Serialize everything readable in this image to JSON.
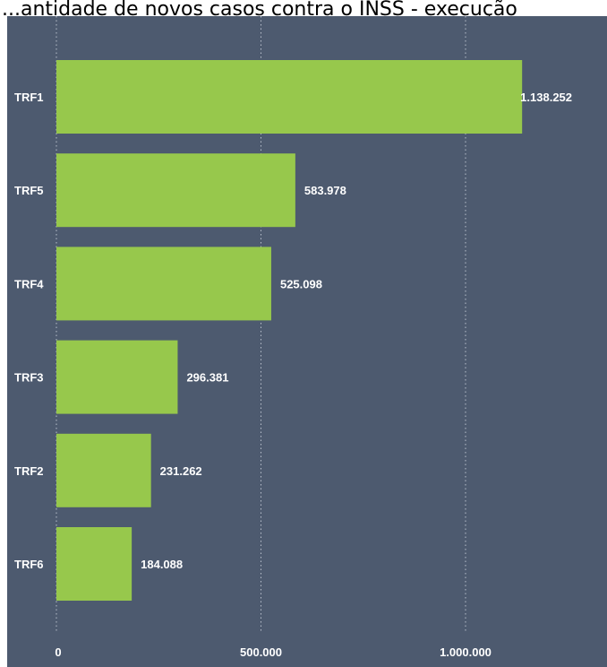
{
  "title": "...antidade de novos casos contra o INSS - execução",
  "colors": {
    "background": "#4d5a6f",
    "bar": "#97c84c",
    "text": "#ffffff",
    "grid": "#b9c0cc"
  },
  "chart_data": {
    "type": "bar",
    "orientation": "horizontal",
    "title": "...antidade de novos casos contra o INSS - execução",
    "xlabel": "",
    "ylabel": "",
    "grid": true,
    "xlim": [
      0,
      1250000
    ],
    "xticks": [
      0,
      500000,
      1000000
    ],
    "xtick_labels": [
      "0",
      "500.000",
      "1.000.000"
    ],
    "categories": [
      "TRF1",
      "TRF5",
      "TRF4",
      "TRF3",
      "TRF2",
      "TRF6"
    ],
    "values": [
      1138252,
      583978,
      525098,
      296381,
      231262,
      184088
    ],
    "value_labels": [
      "1.138.252",
      "583.978",
      "525.098",
      "296.381",
      "231.262",
      "184.088"
    ]
  }
}
